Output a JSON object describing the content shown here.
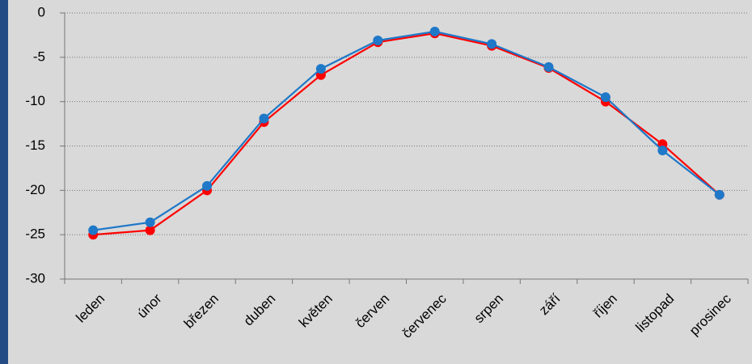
{
  "chart_data": {
    "type": "line",
    "categories": [
      "leden",
      "únor",
      "březen",
      "duben",
      "květen",
      "červen",
      "červenec",
      "srpen",
      "září",
      "říjen",
      "listopad",
      "prosinec"
    ],
    "series": [
      {
        "color": "#ff0000",
        "values": [
          -25,
          -24.5,
          -20,
          -12.3,
          -7,
          -3.3,
          -2.3,
          -3.7,
          -6.2,
          -10,
          -14.8,
          -20.5
        ]
      },
      {
        "color": "#1f78c8",
        "values": [
          -24.5,
          -23.6,
          -19.5,
          -11.9,
          -6.3,
          -3.1,
          -2.1,
          -3.5,
          -6.1,
          -9.5,
          -15.5,
          -20.5
        ]
      }
    ],
    "ylim": [
      -30,
      0
    ],
    "yticks": [
      -30,
      -25,
      -20,
      -15,
      -10,
      -5,
      0
    ],
    "grid": true
  }
}
